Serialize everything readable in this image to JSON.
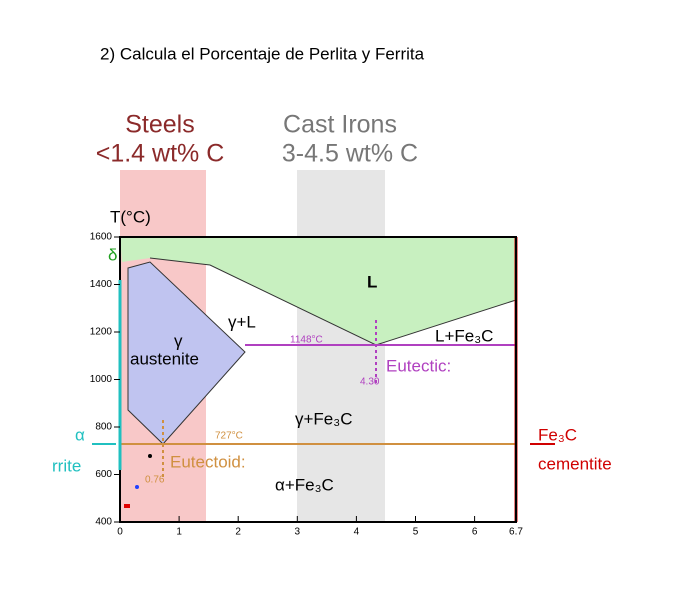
{
  "question": "2)   Calcula el Porcentaje de Perlita y Ferrita",
  "figure": {
    "steels": [
      "Steels",
      "<1.4 wt% C"
    ],
    "cast_irons": [
      "Cast Irons",
      "3-4.5 wt% C"
    ],
    "y_axis_label": "T(°C)",
    "y_ticks": [
      "1600",
      "1400",
      "1200",
      "1000",
      "800",
      "600",
      "400"
    ],
    "x_ticks": [
      "0",
      "1",
      "2",
      "3",
      "4",
      "5",
      "6",
      "6.7"
    ],
    "regions": {
      "liquid": "L",
      "gamma_liquid": "γ+L",
      "gamma": "γ",
      "austenite": "austenite",
      "l_fe3c": "L+Fe₃C",
      "gamma_fe3c": "γ+Fe₃C",
      "alpha_fe3c": "α+Fe₃C",
      "delta": "δ",
      "alpha": "α",
      "ferrite": "rrite"
    },
    "points": {
      "eutectic_temp": "1148°C",
      "eutectic_comp": "4.30",
      "eutectic": "Eutectic:",
      "eutectoid_temp": "727°C",
      "eutectoid_comp": "0.76",
      "eutectoid": "Eutectoid:"
    },
    "cementite": [
      "Fe₃C",
      "cementite"
    ]
  }
}
